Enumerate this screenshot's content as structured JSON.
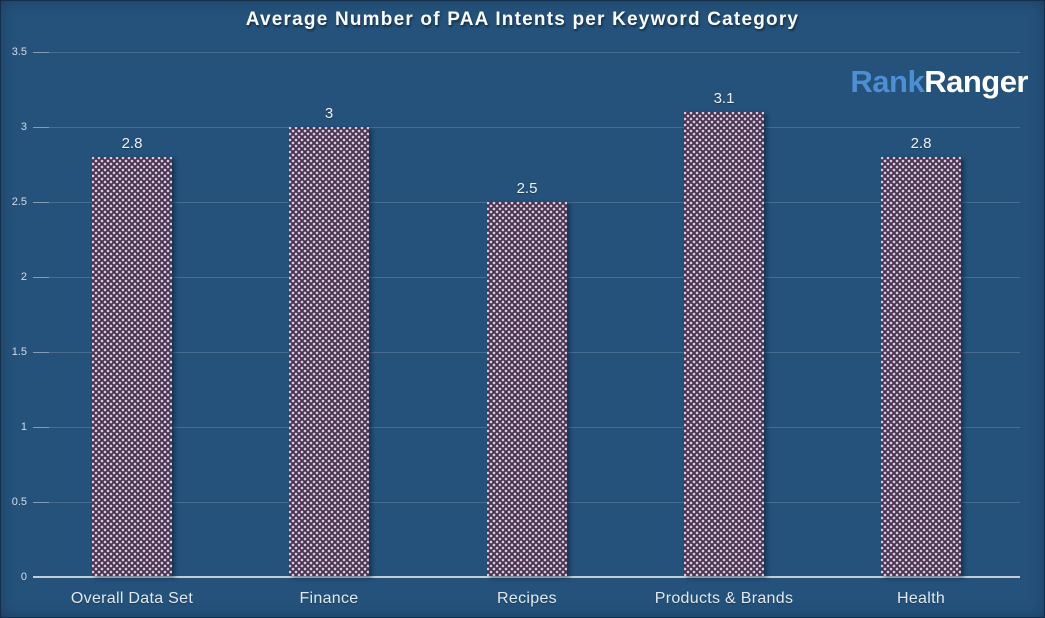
{
  "chart_data": {
    "type": "bar",
    "title": "Average Number of PAA Intents per Keyword Category",
    "categories": [
      "Overall Data Set",
      "Finance",
      "Recipes",
      "Products & Brands",
      "Health"
    ],
    "values": [
      2.8,
      3,
      2.5,
      3.1,
      2.8
    ],
    "value_labels": [
      "2.8",
      "3",
      "2.5",
      "3.1",
      "2.8"
    ],
    "xlabel": "",
    "ylabel": "",
    "ylim": [
      0,
      3.5
    ],
    "y_ticks": [
      0,
      0.5,
      1,
      1.5,
      2,
      2.5,
      3,
      3.5
    ],
    "y_tick_labels": [
      "0",
      "0.5",
      "1",
      "1.5",
      "2",
      "2.5",
      "3",
      "3.5"
    ],
    "grid": true,
    "legend_position": "none"
  },
  "logo": {
    "part1": "Rank",
    "part2": "Ranger",
    "part1_color": "#4c8fd3",
    "part2_color": "#ffffff"
  },
  "colors": {
    "background": "#24527b",
    "bar_fill": "#4b334b",
    "bar_dot": "#d3cde4",
    "gridline": "rgba(255,255,255,0.16)",
    "gridline_tick": "rgba(255,255,255,0.32)",
    "axis_line": "#c3cdd7",
    "title_text": "#fbfcfd",
    "value_label_text": "#eef1f6",
    "category_label_text": "#e2e9f1",
    "y_tick_label_text": "#d3dce6"
  }
}
